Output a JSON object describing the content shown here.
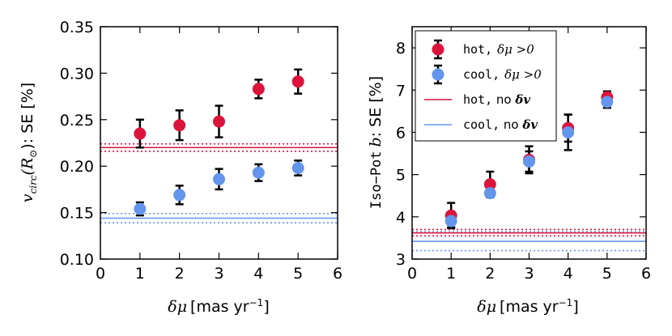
{
  "colors": {
    "hot": "#dc143c",
    "cool": "#6495ed",
    "axis": "#000000"
  },
  "chart_data": [
    {
      "type": "scatter",
      "panel": "left",
      "xlabel_sym": "δμ",
      "xlabel_unit": "[mas yr",
      "xlabel_exp": "−1",
      "xlabel_close": "]",
      "ylabel_sym": "v",
      "ylabel_sub": "circ",
      "ylabel_mid": "(R",
      "ylabel_sun": "⊙",
      "ylabel_end": "): SE [%]",
      "xlim": [
        0,
        6
      ],
      "ylim": [
        0.1,
        0.35
      ],
      "xticks": [
        0,
        1,
        2,
        3,
        4,
        5,
        6
      ],
      "xtick_labels": [
        "0",
        "1",
        "2",
        "3",
        "4",
        "5",
        "6"
      ],
      "yticks": [
        0.1,
        0.15,
        0.2,
        0.25,
        0.3,
        0.35
      ],
      "ytick_labels": [
        "0.10",
        "0.15",
        "0.20",
        "0.25",
        "0.30",
        "0.35"
      ],
      "series": [
        {
          "name": "hot",
          "x": [
            1,
            2,
            3,
            4,
            5
          ],
          "y": [
            0.235,
            0.244,
            0.248,
            0.283,
            0.291
          ],
          "yerr": [
            0.015,
            0.016,
            0.017,
            0.01,
            0.013
          ]
        },
        {
          "name": "cool",
          "x": [
            1,
            2,
            3,
            4,
            5
          ],
          "y": [
            0.154,
            0.169,
            0.186,
            0.193,
            0.198
          ],
          "yerr": [
            0.007,
            0.01,
            0.011,
            0.009,
            0.008
          ]
        }
      ],
      "hlines": [
        {
          "name": "hot",
          "y": 0.22,
          "lo": 0.216,
          "hi": 0.224
        },
        {
          "name": "cool",
          "y": 0.144,
          "lo": 0.139,
          "hi": 0.149
        }
      ]
    },
    {
      "type": "scatter",
      "panel": "right",
      "xlabel_sym": "δμ",
      "xlabel_unit": "[mas yr",
      "xlabel_exp": "−1",
      "xlabel_close": "]",
      "ylabel_mono": "Iso−Pot",
      "ylabel_b": "b",
      "ylabel_end": ": SE [%]",
      "xlim": [
        0,
        6
      ],
      "ylim": [
        3,
        8.5
      ],
      "xticks": [
        0,
        1,
        2,
        3,
        4,
        5,
        6
      ],
      "xtick_labels": [
        "0",
        "1",
        "2",
        "3",
        "4",
        "5",
        "6"
      ],
      "yticks": [
        3,
        4,
        5,
        6,
        7,
        8
      ],
      "ytick_labels": [
        "3",
        "4",
        "5",
        "6",
        "7",
        "8"
      ],
      "series": [
        {
          "name": "hot",
          "x": [
            1,
            2,
            3,
            4,
            5
          ],
          "y": [
            4.03,
            4.77,
            5.35,
            6.1,
            6.83
          ],
          "yerr": [
            0.3,
            0.3,
            0.32,
            0.32,
            0.14
          ]
        },
        {
          "name": "cool",
          "x": [
            1,
            2,
            3,
            4,
            5
          ],
          "y": [
            3.9,
            4.56,
            5.31,
            6.0,
            6.72
          ],
          "yerr": [
            0.15,
            0.1,
            0.24,
            0.42,
            0.14
          ]
        }
      ],
      "hlines": [
        {
          "name": "hot",
          "y": 3.62,
          "lo": 3.55,
          "hi": 3.7
        },
        {
          "name": "cool",
          "y": 3.42,
          "lo": 3.2,
          "hi": 3.65
        }
      ],
      "legend": {
        "placement": "top-left",
        "entries": [
          {
            "mono": "hot,",
            "math": "δμ >0"
          },
          {
            "mono": "cool,",
            "math": "δμ >0"
          },
          {
            "mono": "hot,",
            "text": " no ",
            "bold": "δv"
          },
          {
            "mono": "cool,",
            "text": " no ",
            "bold": "δv"
          }
        ]
      }
    }
  ]
}
